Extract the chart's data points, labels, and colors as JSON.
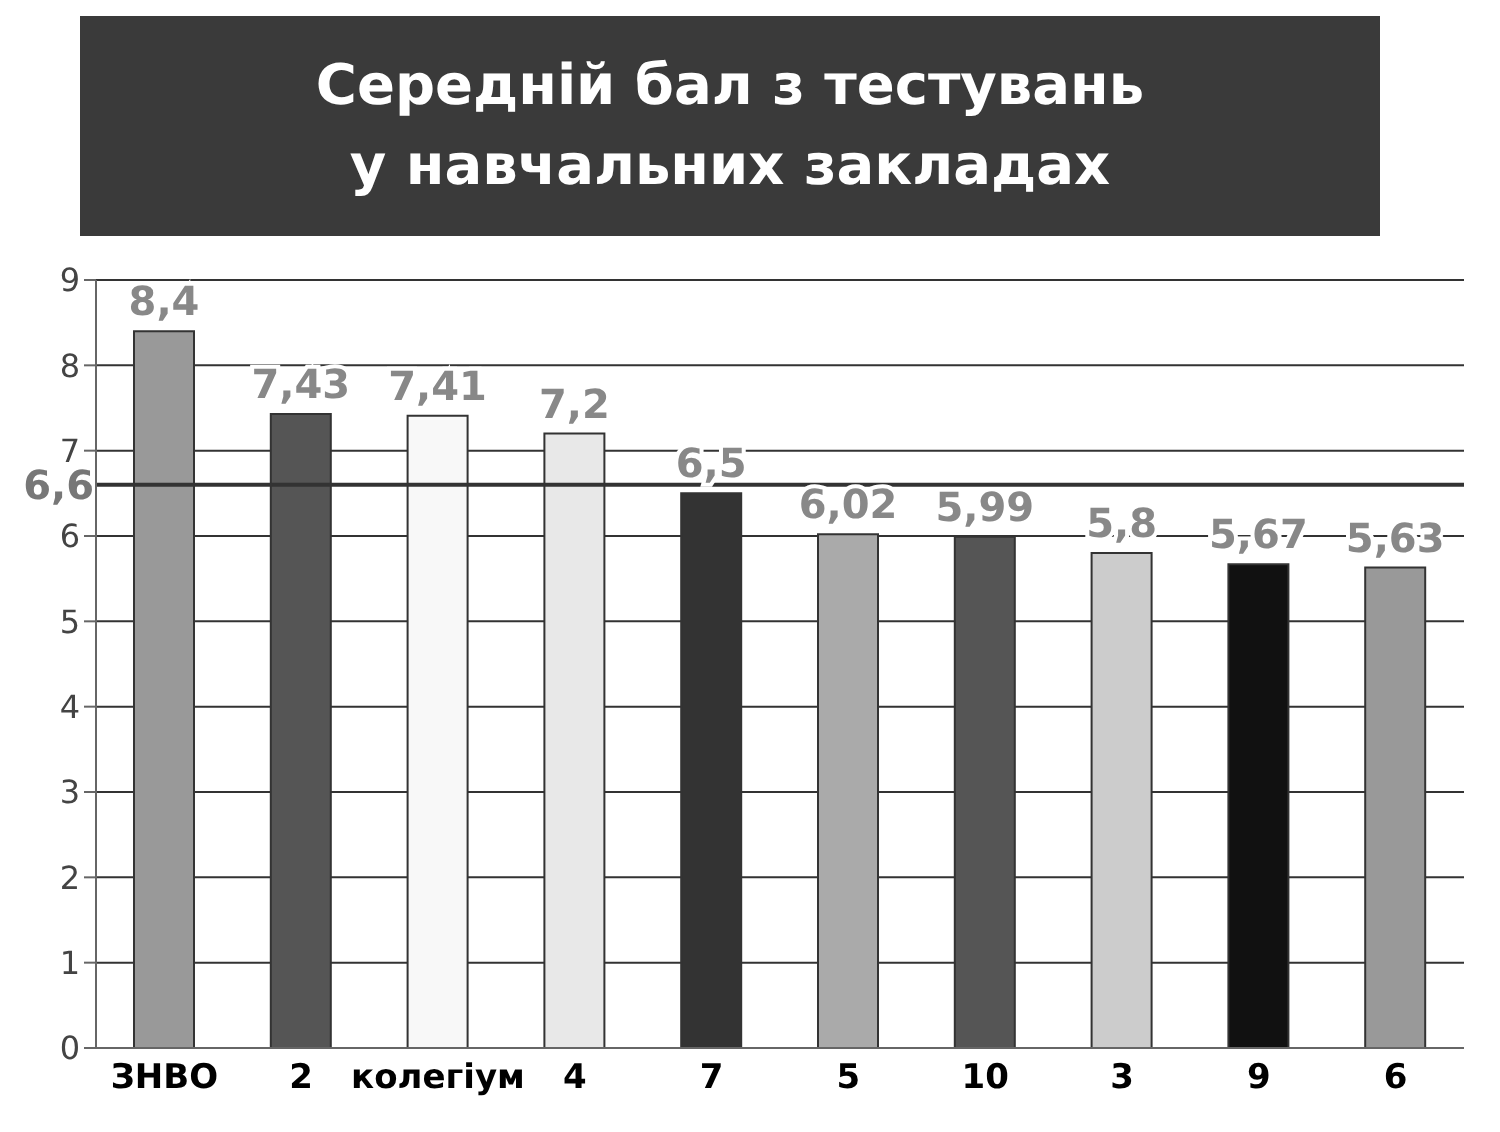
{
  "chart_data": {
    "type": "bar",
    "title": "Середній бал з тестувань\nу навчальних закладах",
    "categories": [
      "ЗНВО",
      "2",
      "колегіум",
      "4",
      "7",
      "5",
      "10",
      "3",
      "9",
      "6"
    ],
    "values": [
      8.4,
      7.43,
      7.41,
      7.2,
      6.5,
      6.02,
      5.99,
      5.8,
      5.67,
      5.63
    ],
    "value_labels": [
      "8,4",
      "7,43",
      "7,41",
      "7,2",
      "6,5",
      "6,02",
      "5,99",
      "5,8",
      "5,67",
      "5,63"
    ],
    "colors": [
      "#999999",
      "#555555",
      "#f8f8f8",
      "#e8e8e8",
      "#333333",
      "#aaaaaa",
      "#555555",
      "#cccccc",
      "#111111",
      "#999999"
    ],
    "ylim": [
      0,
      9
    ],
    "yticks": [
      0,
      1,
      2,
      3,
      4,
      5,
      6,
      7,
      8,
      9
    ],
    "grid": "y",
    "ref_lines": [
      {
        "axis": "y",
        "value": 6.6,
        "label": "6,6",
        "color": "#333333"
      }
    ]
  }
}
